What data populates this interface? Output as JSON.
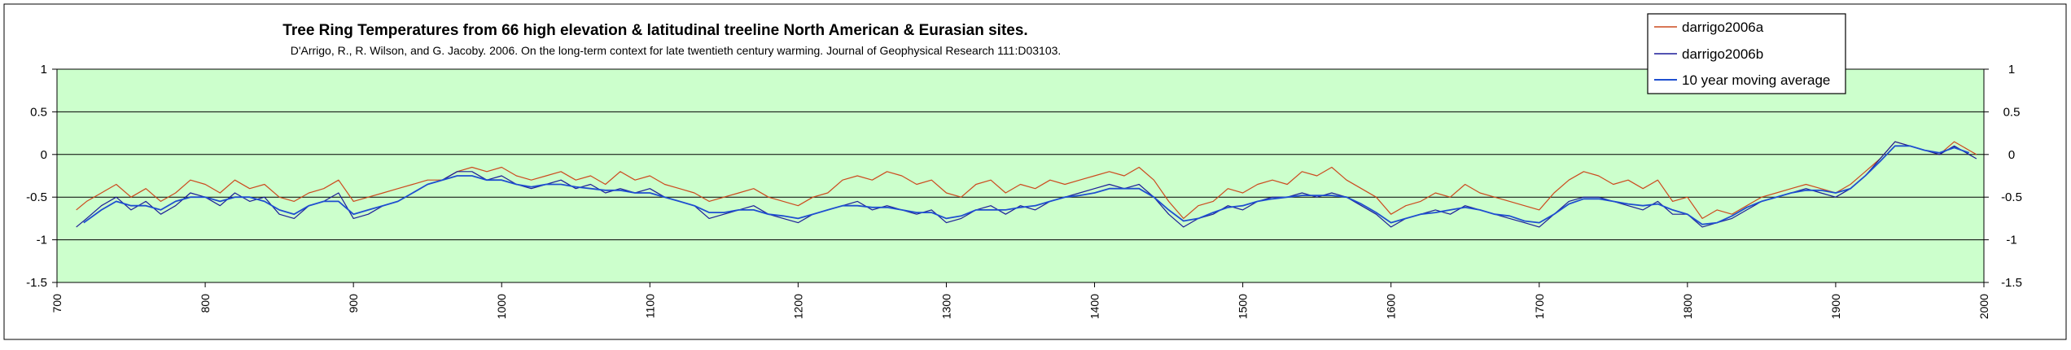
{
  "chart_data": {
    "type": "line",
    "title": "Tree Ring Temperatures from 66 high elevation & latitudinal treeline North American & Eurasian sites.",
    "subtitle": "D'Arrigo, R., R. Wilson, and G. Jacoby.  2006.  On the long-term context for late twentieth century warming.  Journal of Geophysical Research 111:D03103.",
    "xlabel": "",
    "ylabel": "",
    "xlim": [
      700,
      2000
    ],
    "ylim": [
      -1.5,
      1
    ],
    "x_ticks": [
      "700",
      "800",
      "900",
      "1000",
      "1100",
      "1200",
      "1300",
      "1400",
      "1500",
      "1600",
      "1700",
      "1800",
      "1900",
      "2000"
    ],
    "y_ticks": [
      "1",
      "0.5",
      "0",
      "-0.5",
      "-1",
      "-1.5"
    ],
    "legend_position": "top-right",
    "series": [
      {
        "name": "darrigo2006a",
        "color": "#cc4a1e",
        "x": [
          713,
          720,
          730,
          740,
          750,
          760,
          770,
          780,
          790,
          800,
          810,
          820,
          830,
          840,
          850,
          860,
          870,
          880,
          890,
          900,
          910,
          920,
          930,
          940,
          950,
          960,
          970,
          980,
          990,
          1000,
          1010,
          1020,
          1030,
          1040,
          1050,
          1060,
          1070,
          1080,
          1090,
          1100,
          1110,
          1120,
          1130,
          1140,
          1150,
          1160,
          1170,
          1180,
          1190,
          1200,
          1210,
          1220,
          1230,
          1240,
          1250,
          1260,
          1270,
          1280,
          1290,
          1300,
          1310,
          1320,
          1330,
          1340,
          1350,
          1360,
          1370,
          1380,
          1390,
          1400,
          1410,
          1420,
          1430,
          1440,
          1450,
          1460,
          1470,
          1480,
          1490,
          1500,
          1510,
          1520,
          1530,
          1540,
          1550,
          1560,
          1570,
          1580,
          1590,
          1600,
          1610,
          1620,
          1630,
          1640,
          1650,
          1660,
          1670,
          1680,
          1690,
          1700,
          1710,
          1720,
          1730,
          1740,
          1750,
          1760,
          1770,
          1780,
          1790,
          1800,
          1810,
          1820,
          1830,
          1840,
          1850,
          1860,
          1870,
          1880,
          1890,
          1900,
          1910,
          1920,
          1930,
          1940,
          1950,
          1960,
          1970,
          1980,
          1990,
          1995
        ],
        "y": [
          -0.65,
          -0.55,
          -0.45,
          -0.35,
          -0.5,
          -0.4,
          -0.55,
          -0.45,
          -0.3,
          -0.35,
          -0.45,
          -0.3,
          -0.4,
          -0.35,
          -0.5,
          -0.55,
          -0.45,
          -0.4,
          -0.3,
          -0.55,
          -0.5,
          -0.45,
          -0.4,
          -0.35,
          -0.3,
          -0.3,
          -0.2,
          -0.15,
          -0.2,
          -0.15,
          -0.25,
          -0.3,
          -0.25,
          -0.2,
          -0.3,
          -0.25,
          -0.35,
          -0.2,
          -0.3,
          -0.25,
          -0.35,
          -0.4,
          -0.45,
          -0.55,
          -0.5,
          -0.45,
          -0.4,
          -0.5,
          -0.55,
          -0.6,
          -0.5,
          -0.45,
          -0.3,
          -0.25,
          -0.3,
          -0.2,
          -0.25,
          -0.35,
          -0.3,
          -0.45,
          -0.5,
          -0.35,
          -0.3,
          -0.45,
          -0.35,
          -0.4,
          -0.3,
          -0.35,
          -0.3,
          -0.25,
          -0.2,
          -0.25,
          -0.15,
          -0.3,
          -0.55,
          -0.75,
          -0.6,
          -0.55,
          -0.4,
          -0.45,
          -0.35,
          -0.3,
          -0.35,
          -0.2,
          -0.25,
          -0.15,
          -0.3,
          -0.4,
          -0.5,
          -0.7,
          -0.6,
          -0.55,
          -0.45,
          -0.5,
          -0.35,
          -0.45,
          -0.5,
          -0.55,
          -0.6,
          -0.65,
          -0.45,
          -0.3,
          -0.2,
          -0.25,
          -0.35,
          -0.3,
          -0.4,
          -0.3,
          -0.55,
          -0.5,
          -0.75,
          -0.65,
          -0.7,
          -0.6,
          -0.5,
          -0.45,
          -0.4,
          -0.35,
          -0.4,
          -0.45,
          -0.35,
          -0.2,
          -0.05,
          0.15,
          0.1,
          0.05,
          0.0,
          0.15,
          0.05,
          0.0
        ]
      },
      {
        "name": "darrigo2006b",
        "color": "#1c1c99",
        "x": [
          713,
          720,
          730,
          740,
          750,
          760,
          770,
          780,
          790,
          800,
          810,
          820,
          830,
          840,
          850,
          860,
          870,
          880,
          890,
          900,
          910,
          920,
          930,
          940,
          950,
          960,
          970,
          980,
          990,
          1000,
          1010,
          1020,
          1030,
          1040,
          1050,
          1060,
          1070,
          1080,
          1090,
          1100,
          1110,
          1120,
          1130,
          1140,
          1150,
          1160,
          1170,
          1180,
          1190,
          1200,
          1210,
          1220,
          1230,
          1240,
          1250,
          1260,
          1270,
          1280,
          1290,
          1300,
          1310,
          1320,
          1330,
          1340,
          1350,
          1360,
          1370,
          1380,
          1390,
          1400,
          1410,
          1420,
          1430,
          1440,
          1450,
          1460,
          1470,
          1480,
          1490,
          1500,
          1510,
          1520,
          1530,
          1540,
          1550,
          1560,
          1570,
          1580,
          1590,
          1600,
          1610,
          1620,
          1630,
          1640,
          1650,
          1660,
          1670,
          1680,
          1690,
          1700,
          1710,
          1720,
          1730,
          1740,
          1750,
          1760,
          1770,
          1780,
          1790,
          1800,
          1810,
          1820,
          1830,
          1840,
          1850,
          1860,
          1870,
          1880,
          1890,
          1900,
          1910,
          1920,
          1930,
          1940,
          1950,
          1960,
          1970,
          1980,
          1990,
          1995
        ],
        "y": [
          -0.85,
          -0.75,
          -0.6,
          -0.5,
          -0.65,
          -0.55,
          -0.7,
          -0.6,
          -0.45,
          -0.5,
          -0.6,
          -0.45,
          -0.55,
          -0.5,
          -0.7,
          -0.75,
          -0.6,
          -0.55,
          -0.45,
          -0.75,
          -0.7,
          -0.6,
          -0.55,
          -0.45,
          -0.35,
          -0.3,
          -0.2,
          -0.2,
          -0.3,
          -0.25,
          -0.35,
          -0.4,
          -0.35,
          -0.3,
          -0.4,
          -0.35,
          -0.45,
          -0.4,
          -0.45,
          -0.4,
          -0.5,
          -0.55,
          -0.6,
          -0.75,
          -0.7,
          -0.65,
          -0.6,
          -0.7,
          -0.75,
          -0.8,
          -0.7,
          -0.65,
          -0.6,
          -0.55,
          -0.65,
          -0.6,
          -0.65,
          -0.7,
          -0.65,
          -0.8,
          -0.75,
          -0.65,
          -0.6,
          -0.7,
          -0.6,
          -0.65,
          -0.55,
          -0.5,
          -0.45,
          -0.4,
          -0.35,
          -0.4,
          -0.35,
          -0.5,
          -0.7,
          -0.85,
          -0.75,
          -0.7,
          -0.6,
          -0.65,
          -0.55,
          -0.5,
          -0.5,
          -0.45,
          -0.5,
          -0.45,
          -0.5,
          -0.6,
          -0.7,
          -0.85,
          -0.75,
          -0.7,
          -0.65,
          -0.7,
          -0.6,
          -0.65,
          -0.7,
          -0.75,
          -0.8,
          -0.85,
          -0.7,
          -0.55,
          -0.5,
          -0.5,
          -0.55,
          -0.6,
          -0.65,
          -0.55,
          -0.7,
          -0.7,
          -0.85,
          -0.8,
          -0.75,
          -0.65,
          -0.55,
          -0.5,
          -0.45,
          -0.4,
          -0.45,
          -0.5,
          -0.4,
          -0.25,
          -0.05,
          0.15,
          0.1,
          0.05,
          0.0,
          0.1,
          0.0,
          -0.05
        ]
      },
      {
        "name": "10 year moving average",
        "color": "#1f4fd0",
        "x": [
          718,
          730,
          740,
          750,
          760,
          770,
          780,
          790,
          800,
          810,
          820,
          830,
          840,
          850,
          860,
          870,
          880,
          890,
          900,
          910,
          920,
          930,
          940,
          950,
          960,
          970,
          980,
          990,
          1000,
          1010,
          1020,
          1030,
          1040,
          1050,
          1060,
          1070,
          1080,
          1090,
          1100,
          1110,
          1120,
          1130,
          1140,
          1150,
          1160,
          1170,
          1180,
          1190,
          1200,
          1210,
          1220,
          1230,
          1240,
          1250,
          1260,
          1270,
          1280,
          1290,
          1300,
          1310,
          1320,
          1330,
          1340,
          1350,
          1360,
          1370,
          1380,
          1390,
          1400,
          1410,
          1420,
          1430,
          1440,
          1450,
          1460,
          1470,
          1480,
          1490,
          1500,
          1510,
          1520,
          1530,
          1540,
          1550,
          1560,
          1570,
          1580,
          1590,
          1600,
          1610,
          1620,
          1630,
          1640,
          1650,
          1660,
          1670,
          1680,
          1690,
          1700,
          1710,
          1720,
          1730,
          1740,
          1750,
          1760,
          1770,
          1780,
          1790,
          1800,
          1810,
          1820,
          1830,
          1840,
          1850,
          1860,
          1870,
          1880,
          1890,
          1900,
          1910,
          1920,
          1930,
          1940,
          1950,
          1960,
          1970,
          1980,
          1990
        ],
        "y": [
          -0.8,
          -0.65,
          -0.55,
          -0.6,
          -0.6,
          -0.65,
          -0.55,
          -0.5,
          -0.5,
          -0.55,
          -0.5,
          -0.5,
          -0.55,
          -0.65,
          -0.7,
          -0.6,
          -0.55,
          -0.55,
          -0.7,
          -0.65,
          -0.6,
          -0.55,
          -0.45,
          -0.35,
          -0.3,
          -0.25,
          -0.25,
          -0.3,
          -0.3,
          -0.35,
          -0.38,
          -0.35,
          -0.35,
          -0.38,
          -0.4,
          -0.42,
          -0.42,
          -0.45,
          -0.45,
          -0.5,
          -0.55,
          -0.6,
          -0.68,
          -0.68,
          -0.65,
          -0.65,
          -0.7,
          -0.72,
          -0.75,
          -0.7,
          -0.65,
          -0.6,
          -0.6,
          -0.62,
          -0.62,
          -0.65,
          -0.68,
          -0.68,
          -0.75,
          -0.72,
          -0.65,
          -0.65,
          -0.65,
          -0.62,
          -0.6,
          -0.55,
          -0.5,
          -0.48,
          -0.45,
          -0.4,
          -0.4,
          -0.4,
          -0.5,
          -0.65,
          -0.78,
          -0.75,
          -0.68,
          -0.62,
          -0.6,
          -0.55,
          -0.52,
          -0.5,
          -0.48,
          -0.48,
          -0.48,
          -0.5,
          -0.58,
          -0.68,
          -0.8,
          -0.75,
          -0.7,
          -0.68,
          -0.65,
          -0.62,
          -0.65,
          -0.7,
          -0.72,
          -0.78,
          -0.8,
          -0.7,
          -0.58,
          -0.52,
          -0.52,
          -0.55,
          -0.58,
          -0.6,
          -0.58,
          -0.65,
          -0.7,
          -0.82,
          -0.8,
          -0.72,
          -0.62,
          -0.55,
          -0.5,
          -0.45,
          -0.42,
          -0.42,
          -0.45,
          -0.4,
          -0.25,
          -0.08,
          0.1,
          0.1,
          0.05,
          0.02,
          0.08,
          0.02
        ]
      }
    ]
  },
  "legend": {
    "items": [
      "darrigo2006a",
      "darrigo2006b",
      "10 year moving average"
    ]
  },
  "colors": {
    "plot_background": "#ccffcc",
    "gridline": "#000000",
    "series_a": "#cc4a1e",
    "series_b": "#1c1c99",
    "moving_average": "#1f4fd0"
  }
}
